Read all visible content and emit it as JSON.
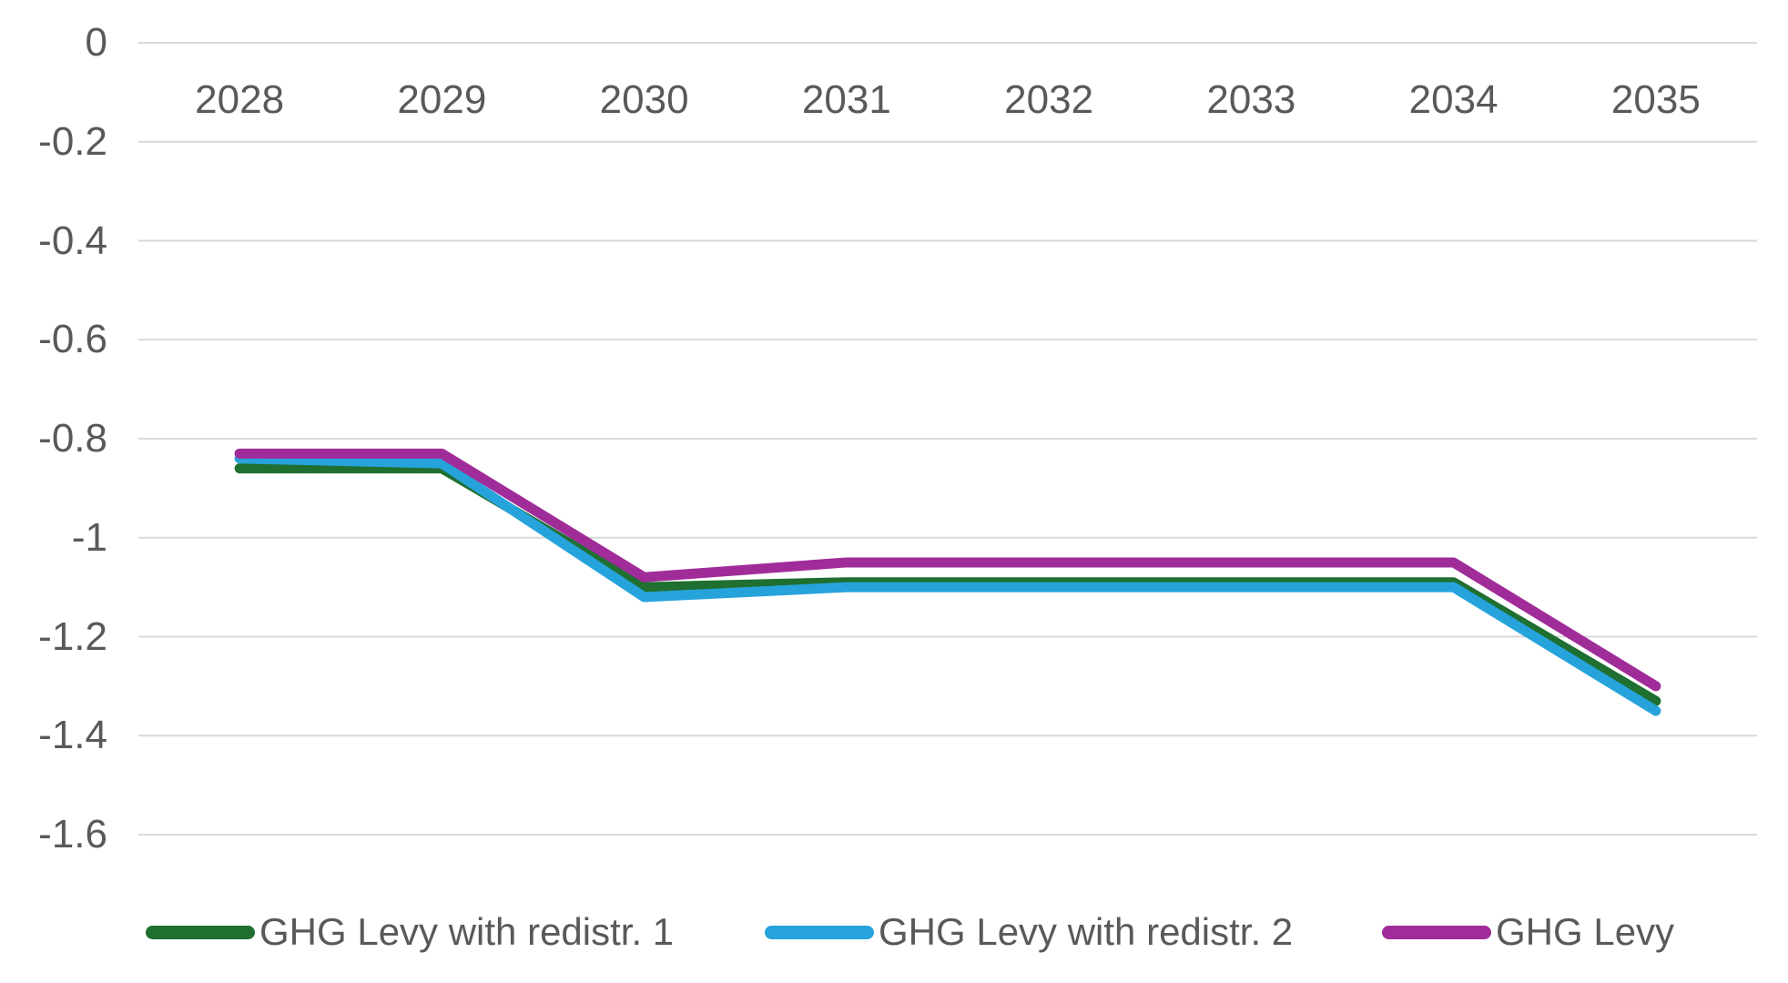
{
  "colors": {
    "background": "#FFFFFF",
    "gridline": "#D9D9D9",
    "axis_text": "#595959",
    "series_green": "#1E6F30",
    "series_blue": "#27A3DC",
    "series_purple": "#A02C99"
  },
  "chart_data": {
    "type": "line",
    "title": "",
    "xlabel": "",
    "ylabel": "",
    "categories": [
      "2028",
      "2029",
      "2030",
      "2031",
      "2032",
      "2033",
      "2034",
      "2035"
    ],
    "series": [
      {
        "name": "GHG Levy with redistr. 1",
        "color": "#1E6F30",
        "values": [
          -0.86,
          -0.86,
          -1.1,
          -1.09,
          -1.09,
          -1.09,
          -1.09,
          -1.33
        ]
      },
      {
        "name": "GHG Levy with redistr. 2",
        "color": "#27A3DC",
        "values": [
          -0.84,
          -0.85,
          -1.12,
          -1.1,
          -1.1,
          -1.1,
          -1.1,
          -1.35
        ]
      },
      {
        "name": "GHG Levy",
        "color": "#A02C99",
        "values": [
          -0.83,
          -0.83,
          -1.08,
          -1.05,
          -1.05,
          -1.05,
          -1.05,
          -1.3
        ]
      }
    ],
    "y_ticks": [
      {
        "label": "0",
        "value": 0.0
      },
      {
        "label": "-0.2",
        "value": -0.2
      },
      {
        "label": "-0.4",
        "value": -0.4
      },
      {
        "label": "-0.6",
        "value": -0.6
      },
      {
        "label": "-0.8",
        "value": -0.8
      },
      {
        "label": "-1",
        "value": -1.0
      },
      {
        "label": "-1.2",
        "value": -1.2
      },
      {
        "label": "-1.4",
        "value": -1.4
      },
      {
        "label": "-1.6",
        "value": -1.6
      }
    ],
    "ylim": [
      -1.6,
      0
    ],
    "grid": "horizontal",
    "legend_position": "bottom",
    "x_label_position": "near-zero-line"
  }
}
